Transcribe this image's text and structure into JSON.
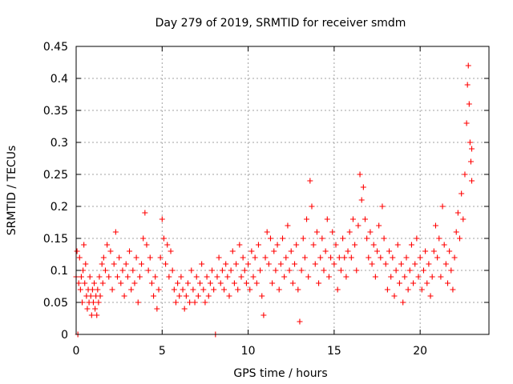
{
  "chart_data": {
    "type": "scatter",
    "title": "Day 279 of 2019, SRMTID for receiver smdm",
    "xlabel": "GPS time / hours",
    "ylabel": "SRMTID / TECUs",
    "xlim": [
      0,
      24
    ],
    "ylim": [
      0,
      0.45
    ],
    "xticks": [
      0,
      5,
      10,
      15,
      20
    ],
    "yticks": [
      0,
      0.05,
      0.1,
      0.15,
      0.2,
      0.25,
      0.3,
      0.35,
      0.4,
      0.45
    ],
    "xtick_labels": [
      "0",
      "5",
      "10",
      "15",
      "20"
    ],
    "ytick_labels": [
      "0",
      "0.05",
      "0.1",
      "0.15",
      "0.2",
      "0.25",
      "0.3",
      "0.35",
      "0.4",
      "0.45"
    ],
    "grid": true,
    "marker": "+",
    "color": "#ff0000",
    "series": [
      {
        "name": "smdm",
        "points": [
          [
            0.0,
            0.09
          ],
          [
            0.05,
            0.13
          ],
          [
            0.1,
            0.0
          ],
          [
            0.15,
            0.08
          ],
          [
            0.2,
            0.12
          ],
          [
            0.25,
            0.07
          ],
          [
            0.3,
            0.09
          ],
          [
            0.35,
            0.05
          ],
          [
            0.4,
            0.1
          ],
          [
            0.45,
            0.14
          ],
          [
            0.5,
            0.08
          ],
          [
            0.55,
            0.11
          ],
          [
            0.6,
            0.06
          ],
          [
            0.65,
            0.04
          ],
          [
            0.7,
            0.07
          ],
          [
            0.75,
            0.05
          ],
          [
            0.8,
            0.09
          ],
          [
            0.85,
            0.06
          ],
          [
            0.9,
            0.03
          ],
          [
            0.95,
            0.07
          ],
          [
            1.0,
            0.05
          ],
          [
            1.05,
            0.08
          ],
          [
            1.1,
            0.04
          ],
          [
            1.15,
            0.06
          ],
          [
            1.2,
            0.03
          ],
          [
            1.25,
            0.07
          ],
          [
            1.3,
            0.05
          ],
          [
            1.35,
            0.09
          ],
          [
            1.4,
            0.06
          ],
          [
            1.5,
            0.11
          ],
          [
            1.55,
            0.08
          ],
          [
            1.6,
            0.12
          ],
          [
            1.7,
            0.1
          ],
          [
            1.8,
            0.14
          ],
          [
            1.9,
            0.09
          ],
          [
            2.0,
            0.13
          ],
          [
            2.1,
            0.07
          ],
          [
            2.2,
            0.11
          ],
          [
            2.3,
            0.16
          ],
          [
            2.4,
            0.09
          ],
          [
            2.5,
            0.12
          ],
          [
            2.6,
            0.08
          ],
          [
            2.7,
            0.1
          ],
          [
            2.8,
            0.06
          ],
          [
            2.9,
            0.11
          ],
          [
            3.0,
            0.09
          ],
          [
            3.1,
            0.13
          ],
          [
            3.2,
            0.07
          ],
          [
            3.3,
            0.1
          ],
          [
            3.4,
            0.08
          ],
          [
            3.5,
            0.12
          ],
          [
            3.6,
            0.05
          ],
          [
            3.7,
            0.09
          ],
          [
            3.8,
            0.11
          ],
          [
            3.9,
            0.15
          ],
          [
            4.0,
            0.19
          ],
          [
            4.1,
            0.14
          ],
          [
            4.2,
            0.1
          ],
          [
            4.3,
            0.12
          ],
          [
            4.4,
            0.08
          ],
          [
            4.5,
            0.06
          ],
          [
            4.6,
            0.09
          ],
          [
            4.7,
            0.04
          ],
          [
            4.8,
            0.07
          ],
          [
            4.9,
            0.12
          ],
          [
            5.0,
            0.18
          ],
          [
            5.1,
            0.15
          ],
          [
            5.2,
            0.11
          ],
          [
            5.3,
            0.14
          ],
          [
            5.4,
            0.09
          ],
          [
            5.5,
            0.13
          ],
          [
            5.6,
            0.1
          ],
          [
            5.7,
            0.07
          ],
          [
            5.8,
            0.05
          ],
          [
            5.9,
            0.08
          ],
          [
            6.0,
            0.06
          ],
          [
            6.1,
            0.09
          ],
          [
            6.2,
            0.07
          ],
          [
            6.3,
            0.04
          ],
          [
            6.4,
            0.06
          ],
          [
            6.5,
            0.08
          ],
          [
            6.6,
            0.05
          ],
          [
            6.7,
            0.1
          ],
          [
            6.8,
            0.07
          ],
          [
            6.9,
            0.05
          ],
          [
            7.0,
            0.09
          ],
          [
            7.1,
            0.06
          ],
          [
            7.2,
            0.08
          ],
          [
            7.3,
            0.11
          ],
          [
            7.4,
            0.07
          ],
          [
            7.5,
            0.05
          ],
          [
            7.6,
            0.09
          ],
          [
            7.7,
            0.06
          ],
          [
            7.8,
            0.08
          ],
          [
            7.9,
            0.1
          ],
          [
            8.0,
            0.07
          ],
          [
            8.1,
            0.0
          ],
          [
            8.2,
            0.09
          ],
          [
            8.3,
            0.12
          ],
          [
            8.4,
            0.08
          ],
          [
            8.5,
            0.1
          ],
          [
            8.6,
            0.07
          ],
          [
            8.7,
            0.11
          ],
          [
            8.8,
            0.09
          ],
          [
            8.9,
            0.06
          ],
          [
            9.0,
            0.1
          ],
          [
            9.1,
            0.13
          ],
          [
            9.2,
            0.08
          ],
          [
            9.3,
            0.11
          ],
          [
            9.4,
            0.07
          ],
          [
            9.5,
            0.14
          ],
          [
            9.6,
            0.09
          ],
          [
            9.7,
            0.12
          ],
          [
            9.8,
            0.1
          ],
          [
            9.9,
            0.08
          ],
          [
            10.0,
            0.11
          ],
          [
            10.1,
            0.07
          ],
          [
            10.2,
            0.13
          ],
          [
            10.3,
            0.09
          ],
          [
            10.4,
            0.12
          ],
          [
            10.5,
            0.08
          ],
          [
            10.6,
            0.14
          ],
          [
            10.7,
            0.1
          ],
          [
            10.8,
            0.06
          ],
          [
            10.9,
            0.03
          ],
          [
            11.0,
            0.12
          ],
          [
            11.1,
            0.16
          ],
          [
            11.2,
            0.11
          ],
          [
            11.3,
            0.15
          ],
          [
            11.4,
            0.08
          ],
          [
            11.5,
            0.13
          ],
          [
            11.6,
            0.1
          ],
          [
            11.7,
            0.14
          ],
          [
            11.8,
            0.07
          ],
          [
            11.9,
            0.11
          ],
          [
            12.0,
            0.15
          ],
          [
            12.1,
            0.09
          ],
          [
            12.2,
            0.12
          ],
          [
            12.3,
            0.17
          ],
          [
            12.4,
            0.1
          ],
          [
            12.5,
            0.13
          ],
          [
            12.6,
            0.08
          ],
          [
            12.7,
            0.11
          ],
          [
            12.8,
            0.14
          ],
          [
            12.9,
            0.07
          ],
          [
            13.0,
            0.02
          ],
          [
            13.1,
            0.1
          ],
          [
            13.2,
            0.15
          ],
          [
            13.3,
            0.12
          ],
          [
            13.4,
            0.18
          ],
          [
            13.5,
            0.09
          ],
          [
            13.6,
            0.24
          ],
          [
            13.7,
            0.2
          ],
          [
            13.8,
            0.14
          ],
          [
            13.9,
            0.11
          ],
          [
            14.0,
            0.16
          ],
          [
            14.1,
            0.08
          ],
          [
            14.2,
            0.12
          ],
          [
            14.3,
            0.15
          ],
          [
            14.4,
            0.1
          ],
          [
            14.5,
            0.13
          ],
          [
            14.6,
            0.18
          ],
          [
            14.7,
            0.09
          ],
          [
            14.8,
            0.12
          ],
          [
            14.9,
            0.16
          ],
          [
            15.0,
            0.11
          ],
          [
            15.1,
            0.14
          ],
          [
            15.2,
            0.07
          ],
          [
            15.3,
            0.12
          ],
          [
            15.4,
            0.1
          ],
          [
            15.5,
            0.15
          ],
          [
            15.6,
            0.12
          ],
          [
            15.7,
            0.09
          ],
          [
            15.8,
            0.13
          ],
          [
            15.9,
            0.16
          ],
          [
            16.0,
            0.12
          ],
          [
            16.1,
            0.18
          ],
          [
            16.2,
            0.14
          ],
          [
            16.3,
            0.1
          ],
          [
            16.4,
            0.17
          ],
          [
            16.5,
            0.25
          ],
          [
            16.6,
            0.21
          ],
          [
            16.7,
            0.23
          ],
          [
            16.8,
            0.18
          ],
          [
            16.9,
            0.15
          ],
          [
            17.0,
            0.12
          ],
          [
            17.1,
            0.16
          ],
          [
            17.2,
            0.11
          ],
          [
            17.3,
            0.14
          ],
          [
            17.4,
            0.09
          ],
          [
            17.5,
            0.13
          ],
          [
            17.6,
            0.17
          ],
          [
            17.7,
            0.12
          ],
          [
            17.8,
            0.2
          ],
          [
            17.9,
            0.15
          ],
          [
            18.0,
            0.11
          ],
          [
            18.1,
            0.07
          ],
          [
            18.2,
            0.13
          ],
          [
            18.3,
            0.09
          ],
          [
            18.4,
            0.12
          ],
          [
            18.5,
            0.06
          ],
          [
            18.6,
            0.1
          ],
          [
            18.7,
            0.14
          ],
          [
            18.8,
            0.08
          ],
          [
            18.9,
            0.11
          ],
          [
            19.0,
            0.05
          ],
          [
            19.1,
            0.09
          ],
          [
            19.2,
            0.12
          ],
          [
            19.3,
            0.07
          ],
          [
            19.4,
            0.1
          ],
          [
            19.5,
            0.14
          ],
          [
            19.6,
            0.08
          ],
          [
            19.7,
            0.11
          ],
          [
            19.8,
            0.15
          ],
          [
            19.9,
            0.09
          ],
          [
            20.0,
            0.12
          ],
          [
            20.1,
            0.07
          ],
          [
            20.2,
            0.1
          ],
          [
            20.3,
            0.13
          ],
          [
            20.4,
            0.08
          ],
          [
            20.5,
            0.11
          ],
          [
            20.6,
            0.06
          ],
          [
            20.7,
            0.09
          ],
          [
            20.8,
            0.13
          ],
          [
            20.9,
            0.17
          ],
          [
            21.0,
            0.12
          ],
          [
            21.1,
            0.15
          ],
          [
            21.2,
            0.09
          ],
          [
            21.3,
            0.2
          ],
          [
            21.4,
            0.14
          ],
          [
            21.5,
            0.11
          ],
          [
            21.6,
            0.08
          ],
          [
            21.7,
            0.13
          ],
          [
            21.8,
            0.1
          ],
          [
            21.9,
            0.07
          ],
          [
            22.0,
            0.12
          ],
          [
            22.1,
            0.16
          ],
          [
            22.2,
            0.19
          ],
          [
            22.3,
            0.15
          ],
          [
            22.4,
            0.22
          ],
          [
            22.5,
            0.18
          ],
          [
            22.6,
            0.25
          ],
          [
            22.7,
            0.33
          ],
          [
            22.75,
            0.39
          ],
          [
            22.8,
            0.42
          ],
          [
            22.85,
            0.36
          ],
          [
            22.9,
            0.3
          ],
          [
            22.95,
            0.27
          ],
          [
            23.0,
            0.24
          ],
          [
            23.0,
            0.29
          ]
        ]
      }
    ]
  }
}
